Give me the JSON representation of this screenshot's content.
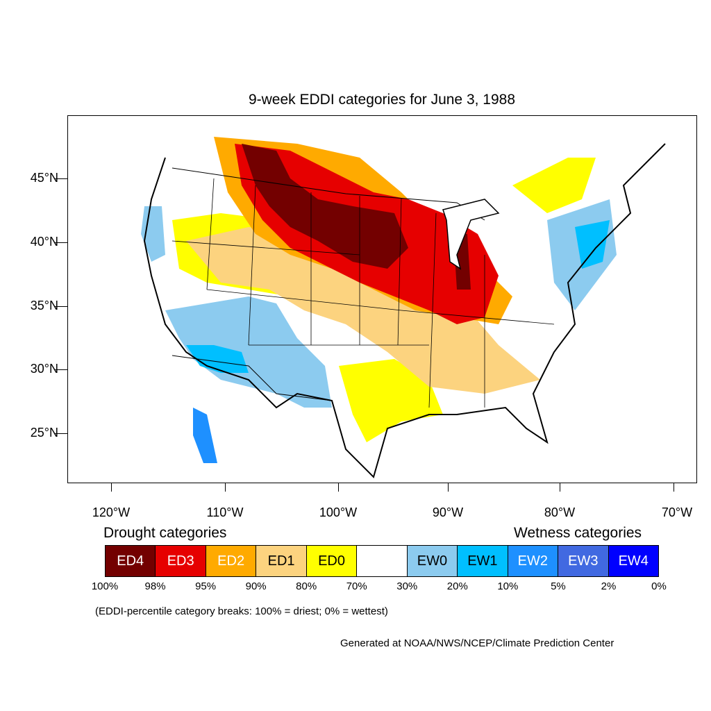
{
  "title": "9-week EDDI categories for June 3, 1988",
  "lat_labels": [
    "45°N",
    "40°N",
    "35°N",
    "30°N",
    "25°N"
  ],
  "lon_labels": [
    "120°W",
    "110°W",
    "100°W",
    "90°W",
    "80°W",
    "70°W"
  ],
  "drought_title": "Drought categories",
  "wetness_title": "Wetness categories",
  "categories": [
    {
      "label": "ED4",
      "color": "#730000",
      "text_color": "#ffffff"
    },
    {
      "label": "ED3",
      "color": "#e60000",
      "text_color": "#ffffff"
    },
    {
      "label": "ED2",
      "color": "#ffaa00",
      "text_color": "#ffffff"
    },
    {
      "label": "ED1",
      "color": "#fcd37f",
      "text_color": "#000000"
    },
    {
      "label": "ED0",
      "color": "#ffff00",
      "text_color": "#000000"
    },
    {
      "label": "",
      "color": "#ffffff",
      "text_color": "#000000"
    },
    {
      "label": "EW0",
      "color": "#8ccbef",
      "text_color": "#000000"
    },
    {
      "label": "EW1",
      "color": "#00bfff",
      "text_color": "#000000"
    },
    {
      "label": "EW2",
      "color": "#1e90ff",
      "text_color": "#ffffff"
    },
    {
      "label": "EW3",
      "color": "#4169e1",
      "text_color": "#ffffff"
    },
    {
      "label": "EW4",
      "color": "#0000ff",
      "text_color": "#ffffff"
    }
  ],
  "percent_breaks": [
    "100%",
    "98%",
    "95%",
    "90%",
    "80%",
    "70%",
    "30%",
    "20%",
    "10%",
    "5%",
    "2%",
    "0%"
  ],
  "note": "(EDDI-percentile category breaks: 100% = driest; 0% = wettest)",
  "credit": "Generated at NOAA/NWS/NCEP/Climate Prediction Center"
}
